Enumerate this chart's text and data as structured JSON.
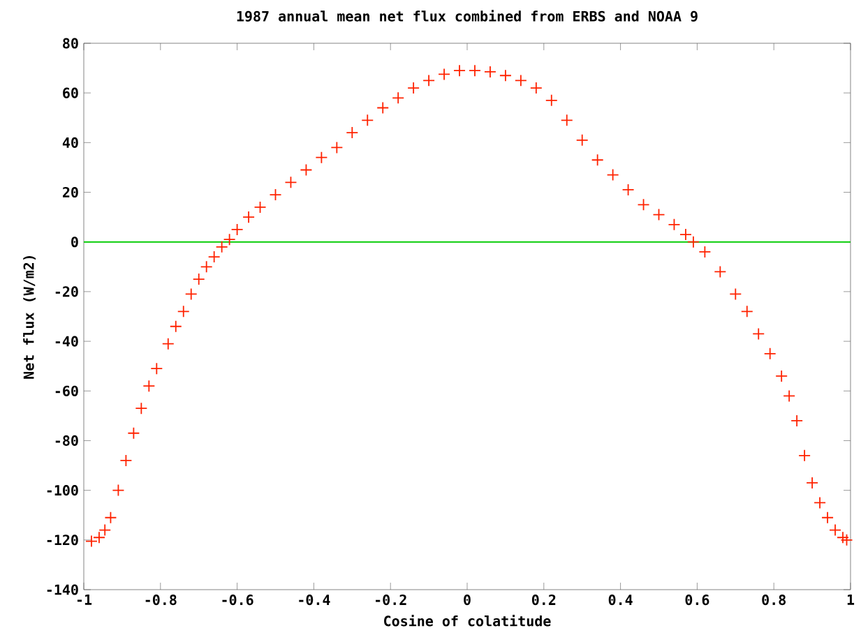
{
  "chart_data": {
    "type": "scatter",
    "title": "1987 annual mean net flux combined from ERBS and NOAA 9",
    "xlabel": "Cosine of colatitude",
    "ylabel": "Net flux (W/m2)",
    "xlim": [
      -1,
      1
    ],
    "ylim": [
      -140,
      80
    ],
    "xticks": [
      -1,
      -0.8,
      -0.6,
      -0.4,
      -0.2,
      0,
      0.2,
      0.4,
      0.6,
      0.8,
      1
    ],
    "yticks": [
      -140,
      -120,
      -100,
      -80,
      -60,
      -40,
      -20,
      0,
      20,
      40,
      60,
      80
    ],
    "marker": "cross",
    "grid": false,
    "ref_lines": [
      {
        "axis": "y",
        "value": 0,
        "color": "#00cc00"
      }
    ],
    "series": [
      {
        "color": "#ff2200",
        "x": [
          -0.98,
          -0.96,
          -0.945,
          -0.93,
          -0.91,
          -0.89,
          -0.87,
          -0.85,
          -0.83,
          -0.81,
          -0.78,
          -0.76,
          -0.74,
          -0.72,
          -0.7,
          -0.68,
          -0.66,
          -0.64,
          -0.62,
          -0.6,
          -0.57,
          -0.54,
          -0.5,
          -0.46,
          -0.42,
          -0.38,
          -0.34,
          -0.3,
          -0.26,
          -0.22,
          -0.18,
          -0.14,
          -0.1,
          -0.06,
          -0.02,
          0.02,
          0.06,
          0.1,
          0.14,
          0.18,
          0.22,
          0.26,
          0.3,
          0.34,
          0.38,
          0.42,
          0.46,
          0.5,
          0.54,
          0.57,
          0.59,
          0.62,
          0.66,
          0.7,
          0.73,
          0.76,
          0.79,
          0.82,
          0.84,
          0.86,
          0.88,
          0.9,
          0.92,
          0.94,
          0.96,
          0.98,
          0.99
        ],
        "values": [
          -120.5,
          -119,
          -116,
          -111,
          -100,
          -88,
          -77,
          -67,
          -58,
          -51,
          -41,
          -34,
          -28,
          -21,
          -15,
          -10,
          -6,
          -2,
          1,
          5,
          10,
          14,
          19,
          24,
          29,
          34,
          38,
          44,
          49,
          54,
          58,
          62,
          65,
          67.5,
          69,
          69,
          68.5,
          67,
          65,
          62,
          57,
          49,
          41,
          33,
          27,
          21,
          15,
          11,
          7,
          3,
          0,
          -4,
          -12,
          -21,
          -28,
          -37,
          -45,
          -54,
          -62,
          -72,
          -86,
          -97,
          -105,
          -111,
          -116,
          -119,
          -120
        ]
      }
    ]
  }
}
